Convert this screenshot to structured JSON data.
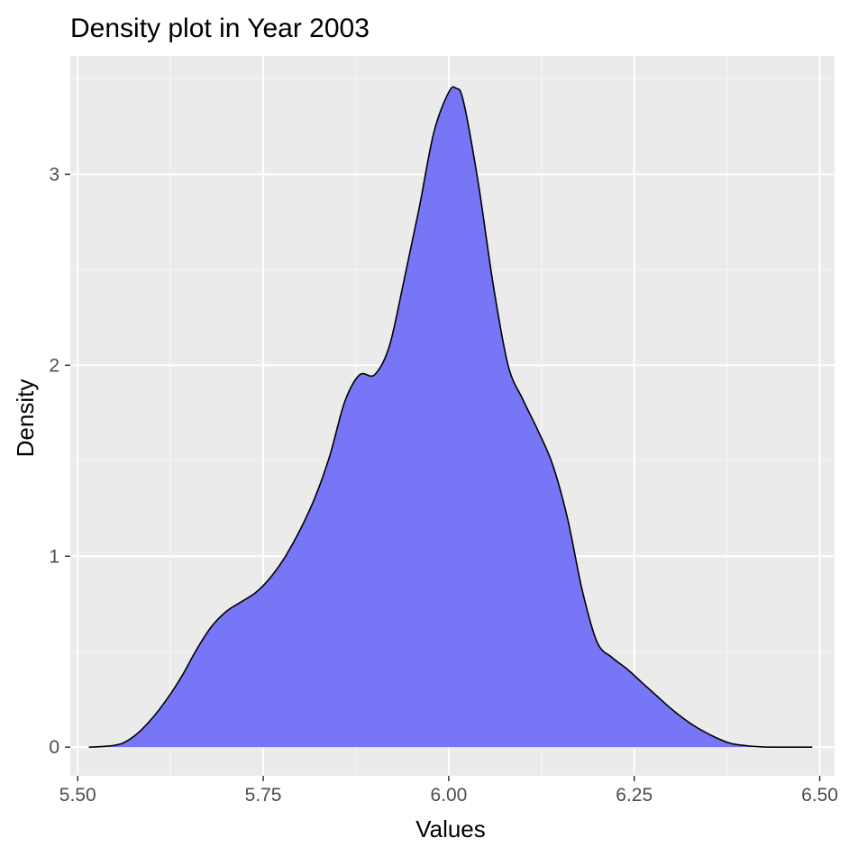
{
  "chart_data": {
    "type": "area",
    "title": "Density plot in Year 2003",
    "xlabel": "Values",
    "ylabel": "Density",
    "xlim": [
      5.49,
      6.52
    ],
    "ylim": [
      -0.15,
      3.62
    ],
    "x_ticks": [
      5.5,
      5.75,
      6.0,
      6.25,
      6.5
    ],
    "x_tick_labels": [
      "5.50",
      "5.75",
      "6.00",
      "6.25",
      "6.50"
    ],
    "y_ticks": [
      0,
      1,
      2,
      3
    ],
    "y_tick_labels": [
      "0",
      "1",
      "2",
      "3"
    ],
    "grid": true,
    "legend": "none",
    "colors": {
      "panel_background": "#EBEBEB",
      "grid_major": "#FFFFFF",
      "grid_minor": "#F5F5F5",
      "fill": "#7676F6",
      "outline": "#000000"
    },
    "series": [
      {
        "x": [
          5.515,
          5.54,
          5.56,
          5.58,
          5.6,
          5.62,
          5.64,
          5.66,
          5.68,
          5.7,
          5.72,
          5.74,
          5.76,
          5.78,
          5.8,
          5.82,
          5.84,
          5.86,
          5.88,
          5.9,
          5.92,
          5.94,
          5.96,
          5.98,
          6.0,
          6.01,
          6.02,
          6.04,
          6.06,
          6.08,
          6.1,
          6.12,
          6.14,
          6.16,
          6.18,
          6.2,
          6.22,
          6.24,
          6.26,
          6.28,
          6.3,
          6.32,
          6.34,
          6.36,
          6.38,
          6.4,
          6.42,
          6.44,
          6.46,
          6.49
        ],
        "y": [
          0.0,
          0.005,
          0.02,
          0.07,
          0.15,
          0.25,
          0.37,
          0.51,
          0.63,
          0.71,
          0.76,
          0.81,
          0.89,
          1.0,
          1.14,
          1.31,
          1.53,
          1.81,
          1.95,
          1.95,
          2.1,
          2.45,
          2.82,
          3.22,
          3.43,
          3.45,
          3.38,
          2.95,
          2.42,
          2.0,
          1.82,
          1.66,
          1.48,
          1.2,
          0.82,
          0.55,
          0.47,
          0.41,
          0.34,
          0.27,
          0.2,
          0.14,
          0.09,
          0.05,
          0.02,
          0.008,
          0.002,
          0.0,
          0.0,
          0.0
        ]
      }
    ]
  }
}
